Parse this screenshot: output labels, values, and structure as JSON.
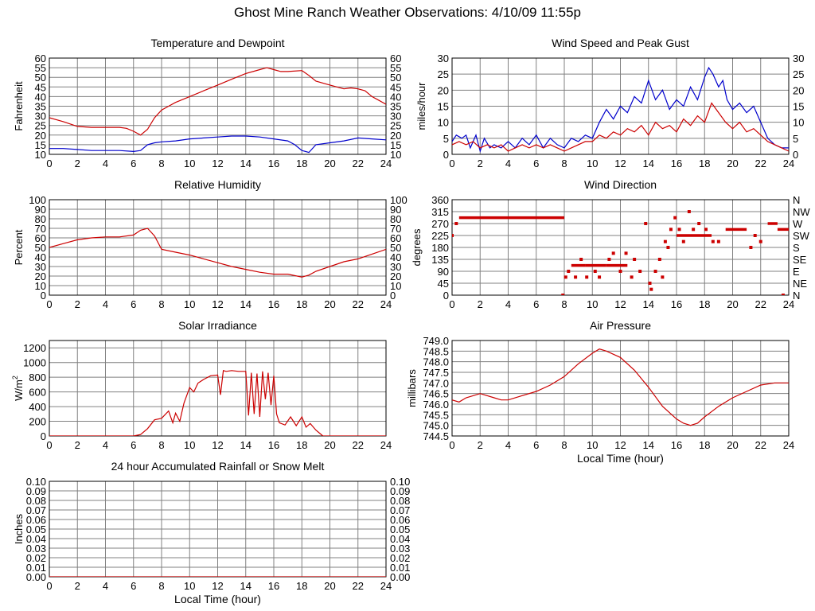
{
  "title": "Ghost Mine Ranch Weather Observations: 4/10/09 11:55p",
  "colors": {
    "red": "#cc0000",
    "blue": "#0000cc",
    "grid": "#808080"
  },
  "chart_data": [
    {
      "id": "temp",
      "type": "line",
      "title": "Temperature and Dewpoint",
      "ylabel": "Fahrenheit",
      "xlabel": "",
      "xlim": [
        0,
        24
      ],
      "ylim": [
        10,
        60
      ],
      "ytick_labels": [
        "10",
        "15",
        "20",
        "25",
        "30",
        "35",
        "40",
        "45",
        "50",
        "55",
        "60"
      ],
      "right_tick_labels": [
        "10",
        "15",
        "20",
        "25",
        "30",
        "35",
        "40",
        "45",
        "50",
        "55",
        "60"
      ],
      "xtick_labels": [
        "0",
        "2",
        "4",
        "6",
        "8",
        "10",
        "12",
        "14",
        "16",
        "18",
        "20",
        "22",
        "24"
      ],
      "grid": true,
      "series": [
        {
          "color": "red",
          "x": [
            0,
            1,
            2,
            3,
            4,
            5,
            5.5,
            6,
            6.5,
            7,
            7.5,
            8,
            8.5,
            9,
            10,
            11,
            12,
            13,
            14,
            15,
            15.5,
            16,
            16.5,
            17,
            18,
            18.5,
            19,
            20,
            20.5,
            21,
            21.5,
            22,
            22.5,
            23,
            23.5,
            24
          ],
          "y": [
            29,
            27,
            24.5,
            24,
            24,
            24,
            23.5,
            22,
            20,
            23,
            29,
            33,
            35,
            37,
            40,
            43,
            46,
            49,
            52,
            54,
            55,
            54,
            53,
            53,
            53.5,
            51,
            48,
            46,
            45,
            44,
            44.5,
            44,
            43,
            40,
            38,
            36
          ]
        },
        {
          "color": "blue",
          "x": [
            0,
            1,
            2,
            3,
            4,
            5,
            6,
            6.5,
            7,
            7.5,
            8,
            9,
            10,
            11,
            12,
            13,
            14,
            15,
            16,
            17,
            17.5,
            18,
            18.5,
            19,
            20,
            21,
            22,
            23,
            24
          ],
          "y": [
            13,
            13,
            12.5,
            12,
            12,
            12,
            11.5,
            12,
            15,
            16,
            16.5,
            17,
            18,
            18.5,
            19,
            19.5,
            19.5,
            19,
            18,
            17,
            15,
            12,
            11,
            15,
            16,
            17,
            18.5,
            18,
            17.5
          ]
        }
      ]
    },
    {
      "id": "wind",
      "type": "line",
      "title": "Wind Speed and Peak Gust",
      "ylabel": "miles/hour",
      "xlabel": "",
      "xlim": [
        0,
        24
      ],
      "ylim": [
        0,
        30
      ],
      "ytick_labels": [
        "0",
        "5",
        "10",
        "15",
        "20",
        "25",
        "30"
      ],
      "right_tick_labels": [
        "0",
        "5",
        "10",
        "15",
        "20",
        "25",
        "30"
      ],
      "xtick_labels": [
        "0",
        "2",
        "4",
        "6",
        "8",
        "10",
        "12",
        "14",
        "16",
        "18",
        "20",
        "22",
        "24"
      ],
      "grid": true,
      "series": [
        {
          "color": "blue",
          "x": [
            0,
            0.3,
            0.7,
            1,
            1.3,
            1.7,
            2,
            2.3,
            2.7,
            3,
            3.5,
            4,
            4.5,
            5,
            5.5,
            6,
            6.5,
            7,
            7.5,
            8,
            8.5,
            9,
            9.5,
            10,
            10.5,
            11,
            11.5,
            12,
            12.5,
            13,
            13.5,
            14,
            14.5,
            15,
            15.5,
            16,
            16.5,
            17,
            17.5,
            18,
            18.3,
            18.6,
            19,
            19.3,
            19.6,
            20,
            20.5,
            21,
            21.5,
            22,
            22.5,
            23,
            23.5,
            24
          ],
          "y": [
            4,
            6,
            5,
            6,
            2,
            6,
            1,
            5,
            2,
            3,
            2,
            4,
            2,
            5,
            3,
            6,
            2,
            5,
            3,
            2,
            5,
            4,
            6,
            5,
            10,
            14,
            11,
            15,
            13,
            18,
            16,
            23,
            17,
            20,
            14,
            17,
            15,
            21,
            17,
            24,
            27,
            25,
            21,
            23,
            17,
            14,
            16,
            13,
            15,
            10,
            5,
            3,
            2,
            2
          ]
        },
        {
          "color": "red",
          "x": [
            0,
            0.5,
            1,
            1.5,
            2,
            2.5,
            3,
            3.5,
            4,
            4.5,
            5,
            5.5,
            6,
            6.5,
            7,
            7.5,
            8,
            8.5,
            9,
            9.5,
            10,
            10.5,
            11,
            11.5,
            12,
            12.5,
            13,
            13.5,
            14,
            14.5,
            15,
            15.5,
            16,
            16.5,
            17,
            17.5,
            18,
            18.5,
            19,
            19.5,
            20,
            20.5,
            21,
            21.5,
            22,
            22.5,
            23,
            23.5,
            24
          ],
          "y": [
            3,
            4,
            3,
            4,
            2,
            3,
            2,
            3,
            1,
            2,
            3,
            2,
            3,
            2,
            3,
            2,
            1,
            2,
            3,
            4,
            4,
            6,
            5,
            7,
            6,
            8,
            7,
            9,
            6,
            10,
            8,
            9,
            7,
            11,
            9,
            12,
            10,
            16,
            13,
            10,
            8,
            10,
            7,
            8,
            6,
            4,
            3,
            2,
            1
          ]
        }
      ]
    },
    {
      "id": "rh",
      "type": "line",
      "title": "Relative Humidity",
      "ylabel": "Percent",
      "xlabel": "",
      "xlim": [
        0,
        24
      ],
      "ylim": [
        0,
        100
      ],
      "ytick_labels": [
        "0",
        "10",
        "20",
        "30",
        "40",
        "50",
        "60",
        "70",
        "80",
        "90",
        "100"
      ],
      "right_tick_labels": [
        "0",
        "10",
        "20",
        "30",
        "40",
        "50",
        "60",
        "70",
        "80",
        "90",
        "100"
      ],
      "xtick_labels": [
        "0",
        "2",
        "4",
        "6",
        "8",
        "10",
        "12",
        "14",
        "16",
        "18",
        "20",
        "22",
        "24"
      ],
      "grid": true,
      "series": [
        {
          "color": "red",
          "x": [
            0,
            1,
            2,
            3,
            4,
            5,
            6,
            6.5,
            7,
            7.5,
            8,
            9,
            10,
            11,
            12,
            13,
            14,
            15,
            16,
            17,
            18,
            18.5,
            19,
            20,
            21,
            22,
            23,
            24
          ],
          "y": [
            50,
            54,
            58,
            60,
            61,
            61,
            63,
            68,
            70,
            62,
            48,
            45,
            42,
            38,
            34,
            30,
            27,
            24,
            22,
            22,
            19,
            21,
            25,
            30,
            35,
            38,
            43,
            48
          ]
        }
      ]
    },
    {
      "id": "wdir",
      "type": "scatter",
      "title": "Wind Direction",
      "ylabel": "degrees",
      "xlabel": "",
      "xlim": [
        0,
        24
      ],
      "ylim": [
        0,
        360
      ],
      "ytick_labels": [
        "0",
        "45",
        "90",
        "135",
        "180",
        "225",
        "270",
        "315",
        "360"
      ],
      "right_tick_labels": [
        "N",
        "NE",
        "E",
        "SE",
        "S",
        "SW",
        "W",
        "NW",
        "N"
      ],
      "xtick_labels": [
        "0",
        "2",
        "4",
        "6",
        "8",
        "10",
        "12",
        "14",
        "16",
        "18",
        "20",
        "22",
        "24"
      ],
      "grid": true,
      "segments": [
        {
          "x1": 0.5,
          "x2": 8.0,
          "y": 292
        },
        {
          "x1": 8.5,
          "x2": 9.5,
          "y": 112
        },
        {
          "x1": 9.5,
          "x2": 11,
          "y": 112
        },
        {
          "x1": 11,
          "x2": 12.5,
          "y": 112
        },
        {
          "x1": 16,
          "x2": 18.5,
          "y": 225
        },
        {
          "x1": 19.5,
          "x2": 21,
          "y": 248
        },
        {
          "x1": 22.5,
          "x2": 23.2,
          "y": 270
        },
        {
          "x1": 23.2,
          "x2": 24,
          "y": 248
        }
      ],
      "points": [
        {
          "x": 0,
          "y": 225
        },
        {
          "x": 0.3,
          "y": 270
        },
        {
          "x": 7.9,
          "y": 0
        },
        {
          "x": 8.1,
          "y": 68
        },
        {
          "x": 8.3,
          "y": 90
        },
        {
          "x": 8.8,
          "y": 68
        },
        {
          "x": 9.2,
          "y": 135
        },
        {
          "x": 9.6,
          "y": 68
        },
        {
          "x": 10.2,
          "y": 90
        },
        {
          "x": 10.5,
          "y": 68
        },
        {
          "x": 11.2,
          "y": 135
        },
        {
          "x": 11.5,
          "y": 158
        },
        {
          "x": 12.0,
          "y": 90
        },
        {
          "x": 12.4,
          "y": 158
        },
        {
          "x": 12.8,
          "y": 68
        },
        {
          "x": 13.0,
          "y": 135
        },
        {
          "x": 13.4,
          "y": 90
        },
        {
          "x": 13.8,
          "y": 270
        },
        {
          "x": 14.1,
          "y": 45
        },
        {
          "x": 14.2,
          "y": 22
        },
        {
          "x": 14.5,
          "y": 90
        },
        {
          "x": 14.8,
          "y": 135
        },
        {
          "x": 15.0,
          "y": 68
        },
        {
          "x": 15.2,
          "y": 202
        },
        {
          "x": 15.4,
          "y": 180
        },
        {
          "x": 15.6,
          "y": 248
        },
        {
          "x": 15.9,
          "y": 292
        },
        {
          "x": 16.2,
          "y": 248
        },
        {
          "x": 16.5,
          "y": 202
        },
        {
          "x": 16.9,
          "y": 315
        },
        {
          "x": 17.2,
          "y": 248
        },
        {
          "x": 17.6,
          "y": 270
        },
        {
          "x": 18.1,
          "y": 248
        },
        {
          "x": 18.6,
          "y": 202
        },
        {
          "x": 19.0,
          "y": 202
        },
        {
          "x": 21.3,
          "y": 180
        },
        {
          "x": 21.6,
          "y": 225
        },
        {
          "x": 22.0,
          "y": 202
        },
        {
          "x": 23.6,
          "y": 0
        }
      ]
    },
    {
      "id": "solar",
      "type": "line",
      "title": "Solar Irradiance",
      "ylabel": "W/m²",
      "xlabel": "",
      "xlim": [
        0,
        24
      ],
      "ylim": [
        0,
        1300
      ],
      "ytick_labels": [
        "0",
        "200",
        "400",
        "600",
        "800",
        "1000",
        "1200"
      ],
      "ytick_values": [
        0,
        200,
        400,
        600,
        800,
        1000,
        1200
      ],
      "xtick_labels": [
        "0",
        "2",
        "4",
        "6",
        "8",
        "10",
        "12",
        "14",
        "16",
        "18",
        "20",
        "22",
        "24"
      ],
      "grid": true,
      "series": [
        {
          "color": "red",
          "x": [
            0,
            6,
            6.5,
            7,
            7.5,
            8,
            8.5,
            8.8,
            9,
            9.3,
            9.6,
            10,
            10.3,
            10.6,
            11,
            11.5,
            12,
            12.2,
            12.4,
            12.6,
            13,
            13.5,
            14,
            14.2,
            14.4,
            14.6,
            14.8,
            15,
            15.2,
            15.4,
            15.6,
            15.8,
            16,
            16.2,
            16.4,
            16.8,
            17.2,
            17.6,
            18,
            18.3,
            18.6,
            19,
            19.5,
            24
          ],
          "y": [
            0,
            0,
            20,
            100,
            220,
            240,
            340,
            180,
            310,
            200,
            450,
            660,
            600,
            720,
            770,
            820,
            830,
            560,
            890,
            880,
            890,
            880,
            880,
            280,
            860,
            300,
            850,
            260,
            880,
            500,
            860,
            420,
            820,
            300,
            180,
            150,
            260,
            140,
            260,
            120,
            170,
            80,
            0,
            0
          ]
        }
      ]
    },
    {
      "id": "pressure",
      "type": "line",
      "title": "Air Pressure",
      "ylabel": "millibars",
      "xlabel": "Local Time (hour)",
      "xlim": [
        0,
        24
      ],
      "ylim": [
        744.5,
        749.0
      ],
      "ytick_labels": [
        "744.5",
        "745.0",
        "745.5",
        "746.0",
        "746.5",
        "747.0",
        "747.5",
        "748.0",
        "748.5",
        "749.0"
      ],
      "ytick_values": [
        744.5,
        745.0,
        745.5,
        746.0,
        746.5,
        747.0,
        747.5,
        748.0,
        748.5,
        749.0
      ],
      "xtick_labels": [
        "0",
        "2",
        "4",
        "6",
        "8",
        "10",
        "12",
        "14",
        "16",
        "18",
        "20",
        "22",
        "24"
      ],
      "grid": true,
      "series": [
        {
          "color": "red",
          "x": [
            0,
            0.5,
            1,
            2,
            3,
            3.5,
            4,
            5,
            6,
            7,
            8,
            9,
            10,
            10.5,
            11,
            12,
            13,
            14,
            15,
            16,
            16.5,
            17,
            17.5,
            18,
            19,
            20,
            21,
            22,
            23,
            24
          ],
          "y": [
            746.2,
            746.1,
            746.3,
            746.5,
            746.3,
            746.2,
            746.2,
            746.4,
            746.6,
            746.9,
            747.3,
            747.9,
            748.4,
            748.6,
            748.5,
            748.2,
            747.6,
            746.8,
            745.9,
            745.3,
            745.1,
            745.0,
            745.1,
            745.4,
            745.9,
            746.3,
            746.6,
            746.9,
            747.0,
            747.0
          ]
        }
      ]
    },
    {
      "id": "rain",
      "type": "line",
      "title": "24 hour Accumulated Rainfall or Snow Melt",
      "ylabel": "Inches",
      "xlabel": "Local Time (hour)",
      "xlim": [
        0,
        24
      ],
      "ylim": [
        0,
        0.1
      ],
      "ytick_labels": [
        "0.00",
        "0.01",
        "0.02",
        "0.03",
        "0.04",
        "0.05",
        "0.06",
        "0.07",
        "0.08",
        "0.09",
        "0.10"
      ],
      "right_tick_labels": [
        "0.00",
        "0.01",
        "0.02",
        "0.03",
        "0.04",
        "0.05",
        "0.06",
        "0.07",
        "0.08",
        "0.09",
        "0.10"
      ],
      "xtick_labels": [
        "0",
        "2",
        "4",
        "6",
        "8",
        "10",
        "12",
        "14",
        "16",
        "18",
        "20",
        "22",
        "24"
      ],
      "grid": true,
      "series": [
        {
          "color": "red",
          "x": [
            0,
            24
          ],
          "y": [
            0,
            0
          ]
        }
      ]
    }
  ]
}
